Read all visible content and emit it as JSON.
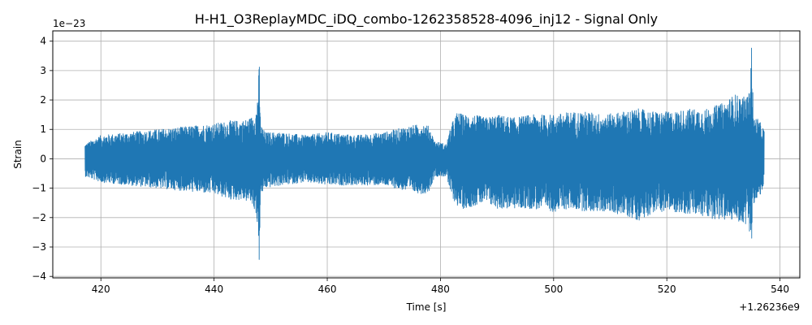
{
  "chart_data": {
    "type": "line",
    "title": "H-H1_O3ReplayMDC_iDQ_combo-1262358528-4096_inj12 - Signal Only",
    "xlabel": "Time [s]",
    "ylabel": "Strain",
    "x_offset_label": "+1.26236e9",
    "y_scale_label": "1e−23",
    "xlim": [
      411.5,
      543.5
    ],
    "ylim": [
      -4.05,
      4.35
    ],
    "xticks": [
      420,
      440,
      460,
      480,
      500,
      520,
      540
    ],
    "yticks": [
      -4,
      -3,
      -2,
      -1,
      0,
      1,
      2,
      3,
      4
    ],
    "xtick_labels": [
      "420",
      "440",
      "460",
      "480",
      "500",
      "520",
      "540"
    ],
    "ytick_labels": [
      "−4",
      "−3",
      "−2",
      "−1",
      "0",
      "1",
      "2",
      "3",
      "4"
    ],
    "grid": true,
    "line_color": "#1f77b4",
    "series": [
      {
        "x": [
          417.2,
          420,
          425,
          430,
          435,
          440,
          443,
          445,
          446.5,
          447.5,
          448,
          448.2,
          449,
          452,
          456,
          460,
          465,
          470,
          474,
          477,
          478,
          479,
          481,
          482,
          483,
          484,
          486,
          488,
          490,
          493,
          496,
          500,
          503,
          506,
          509,
          512,
          515,
          518,
          521,
          524,
          527,
          530,
          532,
          533.5,
          534.5,
          535,
          535.3,
          536,
          537.2
        ],
        "y_upper": [
          0.5,
          0.8,
          0.9,
          1.0,
          1.1,
          1.2,
          1.3,
          1.3,
          1.4,
          1.7,
          3.25,
          1.2,
          0.9,
          0.9,
          0.8,
          0.9,
          0.8,
          0.9,
          1.1,
          1.2,
          1.1,
          0.6,
          0.5,
          1.2,
          1.6,
          1.5,
          1.5,
          1.4,
          1.5,
          1.4,
          1.5,
          1.5,
          1.6,
          1.6,
          1.5,
          1.6,
          1.7,
          1.6,
          1.6,
          1.7,
          1.7,
          1.9,
          2.2,
          2.1,
          2.2,
          4.1,
          1.4,
          1.4,
          1.0
        ],
        "y_lower": [
          -0.6,
          -0.8,
          -0.9,
          -1.0,
          -1.1,
          -1.2,
          -1.4,
          -1.4,
          -1.5,
          -1.9,
          -3.6,
          -1.3,
          -1.0,
          -0.9,
          -0.8,
          -0.9,
          -0.9,
          -0.9,
          -1.1,
          -1.2,
          -1.1,
          -0.6,
          -0.6,
          -1.3,
          -1.6,
          -1.7,
          -1.6,
          -1.5,
          -1.7,
          -1.7,
          -1.7,
          -1.8,
          -1.7,
          -1.8,
          -1.8,
          -1.9,
          -2.1,
          -1.8,
          -1.8,
          -1.9,
          -2.0,
          -2.1,
          -2.1,
          -2.2,
          -2.3,
          -3.1,
          -1.5,
          -1.5,
          -0.9
        ]
      }
    ]
  }
}
